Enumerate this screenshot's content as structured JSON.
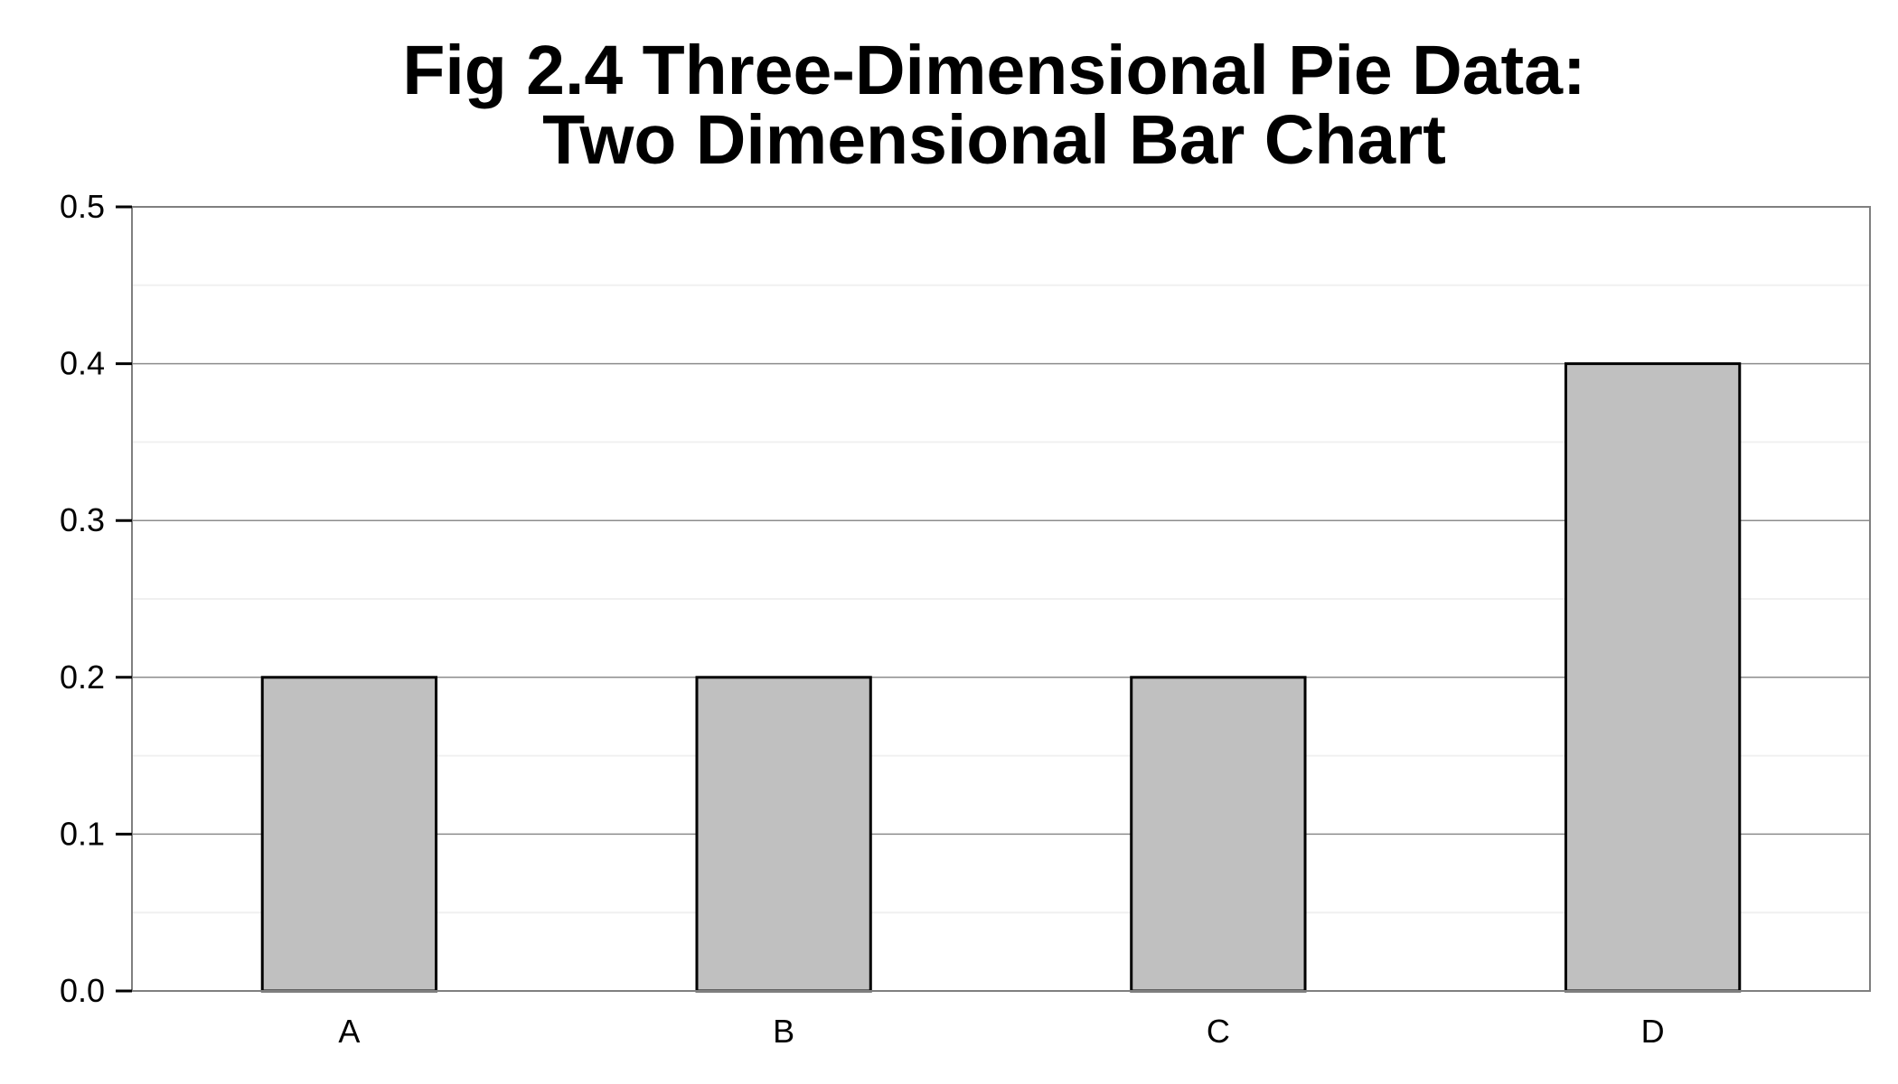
{
  "chart_data": {
    "type": "bar",
    "title": "Fig 2.4 Three-Dimensional Pie Data:",
    "subtitle": "Two Dimensional Bar Chart",
    "xlabel": "",
    "ylabel": "",
    "categories": [
      "A",
      "B",
      "C",
      "D"
    ],
    "values": [
      0.2,
      0.2,
      0.2,
      0.4
    ],
    "ylim": [
      0,
      0.5
    ],
    "y_ticks": [
      0.0,
      0.1,
      0.2,
      0.3,
      0.4,
      0.5
    ],
    "y_tick_labels": [
      "0.0",
      "0.1",
      "0.2",
      "0.3",
      "0.4",
      "0.5"
    ],
    "grid": true,
    "legend": "none",
    "colors": {
      "bar_fill": "#c0c0c0",
      "bar_stroke": "#000000",
      "grid_major": "#8c8c8c",
      "grid_minor": "#f0f0f0",
      "panel_border": "#7f7f7f"
    }
  }
}
